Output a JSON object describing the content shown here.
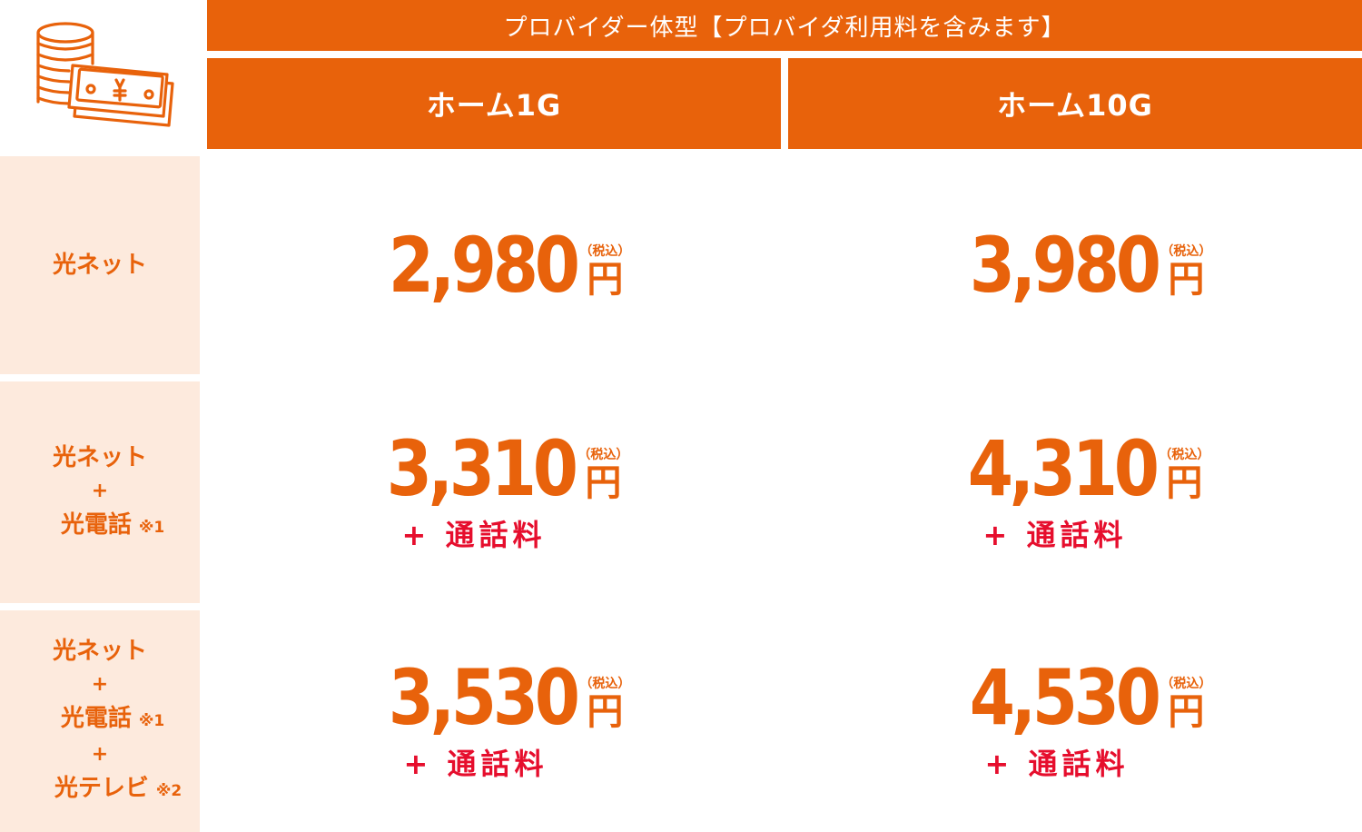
{
  "header": {
    "title": "プロバイダー体型【プロバイダ利用料を含みます】",
    "plans": [
      "ホーム1G",
      "ホーム10G"
    ]
  },
  "rows": [
    {
      "label_lines": [
        "光ネット"
      ],
      "prices": [
        {
          "amount": "2,980",
          "unit": "円",
          "tax": "（税込）",
          "extra": ""
        },
        {
          "amount": "3,980",
          "unit": "円",
          "tax": "（税込）",
          "extra": ""
        }
      ]
    },
    {
      "label_lines": [
        "光ネット",
        "+",
        "光電話"
      ],
      "notes": [
        "",
        "",
        "※1"
      ],
      "prices": [
        {
          "amount": "3,310",
          "unit": "円",
          "tax": "（税込）",
          "extra": "+ 通話料"
        },
        {
          "amount": "4,310",
          "unit": "円",
          "tax": "（税込）",
          "extra": "+ 通話料"
        }
      ]
    },
    {
      "label_lines": [
        "光ネット",
        "+",
        "光電話",
        "+",
        "光テレビ"
      ],
      "notes": [
        "",
        "",
        "※1",
        "",
        "※2"
      ],
      "prices": [
        {
          "amount": "3,530",
          "unit": "円",
          "tax": "（税込）",
          "extra": "+ 通話料"
        },
        {
          "amount": "4,530",
          "unit": "円",
          "tax": "（税込）",
          "extra": "+ 通話料"
        }
      ]
    }
  ],
  "colors": {
    "accent": "#e8620b",
    "label_bg": "#fdeadd",
    "call_fee": "#e60e2d"
  },
  "icon": "money-coins-icon"
}
